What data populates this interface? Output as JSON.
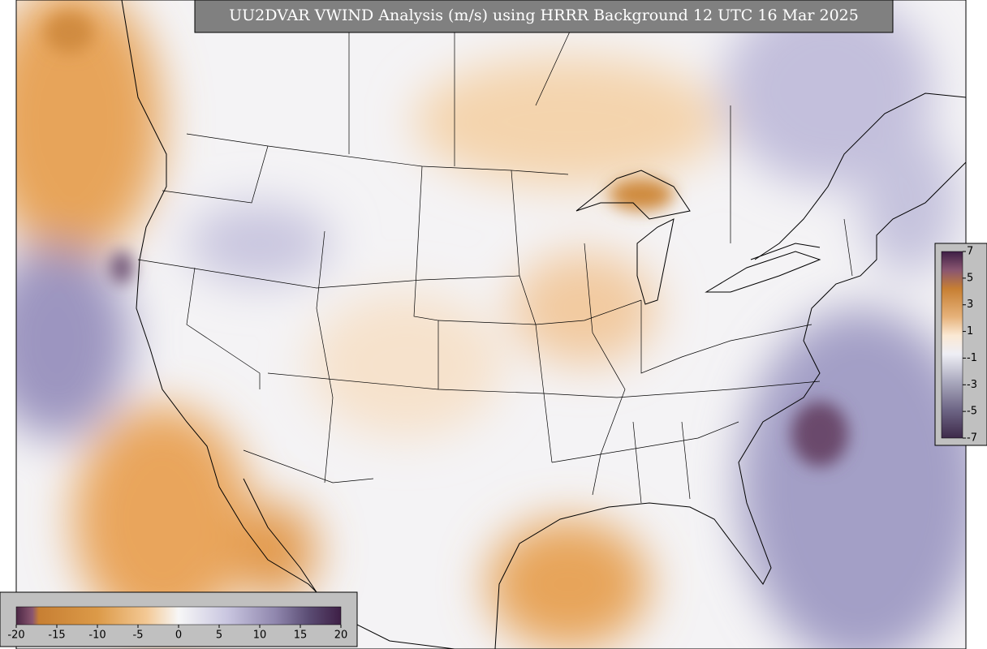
{
  "title": "UU2DVAR VWIND Analysis (m/s) using HRRR Background 12 UTC 16 Mar 2025",
  "colorbars": [
    {
      "orientation": "horizontal",
      "lim": [
        -20,
        20
      ],
      "ticks": [
        -20,
        -15,
        -10,
        -5,
        0,
        5,
        10,
        15,
        20
      ]
    },
    {
      "orientation": "vertical",
      "lim": [
        -7,
        7
      ],
      "ticks": [
        7,
        5,
        3,
        1,
        -1,
        -3,
        -5,
        -7
      ]
    }
  ]
}
